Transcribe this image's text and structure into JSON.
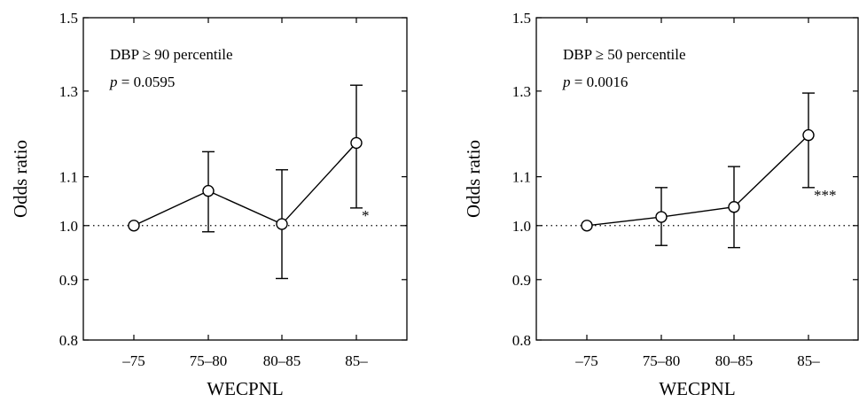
{
  "chart_data": [
    {
      "type": "line",
      "annotation_line1": "DBP ≥ 90 percentile",
      "p_symbol": "p",
      "p_text": " = 0.0595",
      "ylabel": "Odds ratio",
      "xlabel": "WECPNL",
      "categories": [
        "–75",
        "75–80",
        "80–85",
        "85–"
      ],
      "y_ticks": [
        "1.5",
        "1.3",
        "1.1",
        "1.0",
        "0.9",
        "0.8"
      ],
      "scale": "log",
      "ylim": [
        0.8,
        1.5
      ],
      "reference_line": 1.0,
      "series": [
        {
          "values": [
            1.0,
            1.07,
            1.003,
            1.175
          ],
          "ci_lower": [
            null,
            0.988,
            0.902,
            1.035
          ],
          "ci_upper": [
            null,
            1.155,
            1.115,
            1.315
          ]
        }
      ],
      "significance": "*"
    },
    {
      "type": "line",
      "annotation_line1": "DBP ≥ 50 percentile",
      "p_symbol": "p",
      "p_text": " = 0.0016",
      "ylabel": "Odds ratio",
      "xlabel": "WECPNL",
      "categories": [
        "–75",
        "75–80",
        "80–85",
        "85–"
      ],
      "y_ticks": [
        "1.5",
        "1.3",
        "1.1",
        "1.0",
        "0.9",
        "0.8"
      ],
      "scale": "log",
      "ylim": [
        0.8,
        1.5
      ],
      "reference_line": 1.0,
      "series": [
        {
          "values": [
            1.0,
            1.017,
            1.037,
            1.193
          ],
          "ci_lower": [
            null,
            0.962,
            0.958,
            1.077
          ],
          "ci_upper": [
            null,
            1.077,
            1.122,
            1.295
          ]
        }
      ],
      "significance": "***"
    }
  ]
}
